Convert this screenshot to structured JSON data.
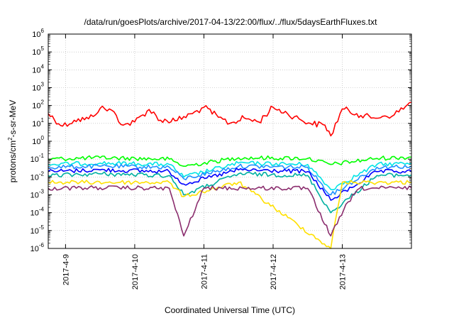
{
  "chart_data": {
    "type": "line",
    "title": "/data/run/goesPlots/archive/2017-04-13/22:00/flux/../flux/5daysEarthFluxes.txt",
    "xlabel": "Coordinated Universal Time (UTC)",
    "ylabel": {
      "prefix": "protons/cm",
      "sup": "2",
      "suffix": "-s-sr-MeV"
    },
    "yscale": "log",
    "ylim": [
      1e-06,
      1000000.0
    ],
    "y_ticks": [
      {
        "exp": "-6"
      },
      {
        "exp": "-5"
      },
      {
        "exp": "-4"
      },
      {
        "exp": "-3"
      },
      {
        "exp": "-2"
      },
      {
        "exp": "-1"
      },
      {
        "exp": "0"
      },
      {
        "exp": "1"
      },
      {
        "exp": "2"
      },
      {
        "exp": "3"
      },
      {
        "exp": "4"
      },
      {
        "exp": "5"
      },
      {
        "exp": "6"
      }
    ],
    "xlim": [
      "2017-04-08 18:00",
      "2017-04-13 23:59"
    ],
    "x_ticks": [
      "2017-4-9",
      "2017-4-10",
      "2017-4-11",
      "2017-4-12",
      "2017-4-13"
    ],
    "grid": true,
    "series": [
      {
        "color": "#ff0000",
        "points": [
          [
            "2017-04-08 18:00",
            35
          ],
          [
            "2017-04-08 23:00",
            7
          ],
          [
            "2017-04-09 03:00",
            15
          ],
          [
            "2017-04-09 08:00",
            18
          ],
          [
            "2017-04-09 12:00",
            70
          ],
          [
            "2017-04-09 16:00",
            55
          ],
          [
            "2017-04-09 20:00",
            8
          ],
          [
            "2017-04-10 00:00",
            12
          ],
          [
            "2017-04-10 05:00",
            60
          ],
          [
            "2017-04-10 09:00",
            15
          ],
          [
            "2017-04-10 14:00",
            14
          ],
          [
            "2017-04-10 20:00",
            35
          ],
          [
            "2017-04-11 00:00",
            80
          ],
          [
            "2017-04-11 05:00",
            22
          ],
          [
            "2017-04-11 09:00",
            10
          ],
          [
            "2017-04-11 14:00",
            20
          ],
          [
            "2017-04-11 19:00",
            12
          ],
          [
            "2017-04-12 00:00",
            80
          ],
          [
            "2017-04-12 05:00",
            35
          ],
          [
            "2017-04-12 09:00",
            18
          ],
          [
            "2017-04-12 13:00",
            10
          ],
          [
            "2017-04-12 18:00",
            8
          ],
          [
            "2017-04-12 20:00",
            2
          ],
          [
            "2017-04-13 00:00",
            65
          ],
          [
            "2017-04-13 05:00",
            35
          ],
          [
            "2017-04-13 10:00",
            20
          ],
          [
            "2017-04-13 14:00",
            25
          ],
          [
            "2017-04-13 18:00",
            30
          ],
          [
            "2017-04-13 22:00",
            90
          ],
          [
            "2017-04-13 23:59",
            150
          ]
        ]
      },
      {
        "color": "#00ff00",
        "points": [
          [
            "2017-04-08 18:00",
            0.1
          ],
          [
            "2017-04-09 12:00",
            0.12
          ],
          [
            "2017-04-10 12:00",
            0.1
          ],
          [
            "2017-04-10 17:00",
            0.04
          ],
          [
            "2017-04-11 12:00",
            0.12
          ],
          [
            "2017-04-12 12:00",
            0.11
          ],
          [
            "2017-04-12 20:00",
            0.05
          ],
          [
            "2017-04-13 12:00",
            0.11
          ],
          [
            "2017-04-13 23:59",
            0.13
          ]
        ]
      },
      {
        "color": "#00e5e5",
        "points": [
          [
            "2017-04-08 18:00",
            0.05
          ],
          [
            "2017-04-09 12:00",
            0.06
          ],
          [
            "2017-04-10 12:00",
            0.05
          ],
          [
            "2017-04-10 17:00",
            0.01
          ],
          [
            "2017-04-11 12:00",
            0.06
          ],
          [
            "2017-04-12 12:00",
            0.05
          ],
          [
            "2017-04-12 20:00",
            0.002
          ],
          [
            "2017-04-13 12:00",
            0.05
          ],
          [
            "2017-04-13 23:59",
            0.06
          ]
        ]
      },
      {
        "color": "#1e90ff",
        "points": [
          [
            "2017-04-08 18:00",
            0.035
          ],
          [
            "2017-04-09 12:00",
            0.04
          ],
          [
            "2017-04-10 12:00",
            0.035
          ],
          [
            "2017-04-10 17:00",
            0.008
          ],
          [
            "2017-04-11 12:00",
            0.04
          ],
          [
            "2017-04-12 12:00",
            0.035
          ],
          [
            "2017-04-12 20:00",
            0.001
          ],
          [
            "2017-04-13 12:00",
            0.035
          ],
          [
            "2017-04-13 23:59",
            0.04
          ]
        ]
      },
      {
        "color": "#0000ff",
        "points": [
          [
            "2017-04-08 18:00",
            0.02
          ],
          [
            "2017-04-09 12:00",
            0.025
          ],
          [
            "2017-04-10 12:00",
            0.02
          ],
          [
            "2017-04-10 17:00",
            0.004
          ],
          [
            "2017-04-11 12:00",
            0.025
          ],
          [
            "2017-04-12 12:00",
            0.02
          ],
          [
            "2017-04-12 20:00",
            0.0005
          ],
          [
            "2017-04-13 12:00",
            0.02
          ],
          [
            "2017-04-13 23:59",
            0.02
          ]
        ]
      },
      {
        "color": "#00b0a0",
        "points": [
          [
            "2017-04-08 18:00",
            0.012
          ],
          [
            "2017-04-09 12:00",
            0.015
          ],
          [
            "2017-04-10 12:00",
            0.012
          ],
          [
            "2017-04-10 17:00",
            0.001
          ],
          [
            "2017-04-11 12:00",
            0.015
          ],
          [
            "2017-04-12 12:00",
            0.012
          ],
          [
            "2017-04-12 20:00",
            0.0001
          ],
          [
            "2017-04-13 12:00",
            0.012
          ],
          [
            "2017-04-13 23:59",
            0.013
          ]
        ]
      },
      {
        "color": "#ffe000",
        "points": [
          [
            "2017-04-08 18:00",
            0.005
          ],
          [
            "2017-04-10 12:00",
            0.005
          ],
          [
            "2017-04-10 17:00",
            0.0008
          ],
          [
            "2017-04-11 12:00",
            0.005
          ],
          [
            "2017-04-12 20:00",
            1e-06
          ],
          [
            "2017-04-13 00:00",
            0.005
          ],
          [
            "2017-04-13 23:59",
            0.005
          ]
        ]
      },
      {
        "color": "#8b2d6e",
        "points": [
          [
            "2017-04-08 18:00",
            0.0023
          ],
          [
            "2017-04-09 12:00",
            0.0025
          ],
          [
            "2017-04-10 12:00",
            0.0023
          ],
          [
            "2017-04-10 17:00",
            5e-06
          ],
          [
            "2017-04-11 00:00",
            0.0024
          ],
          [
            "2017-04-12 12:00",
            0.0023
          ],
          [
            "2017-04-12 20:00",
            5e-06
          ],
          [
            "2017-04-13 02:00",
            0.0004
          ],
          [
            "2017-04-13 06:00",
            0.0023
          ],
          [
            "2017-04-13 23:59",
            0.0024
          ]
        ]
      }
    ]
  }
}
